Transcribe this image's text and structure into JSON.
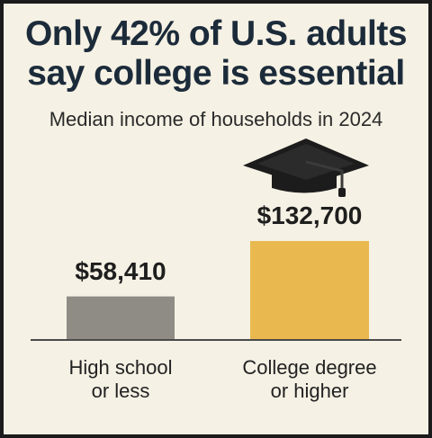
{
  "header": {
    "title_line_1": "Only 42% of U.S. adults",
    "title_line_2": "say college is essential",
    "subtitle": "Median income of households in 2024"
  },
  "colors": {
    "background": "#f5f1e4",
    "title": "#1c2b3a",
    "high_school_bar": "#8f8c86",
    "college_bar": "#e9b84f",
    "baseline": "#4a4a4a",
    "cap": "#1c1c1c"
  },
  "icons": {
    "graduation": "graduation-cap-icon"
  },
  "chart_data": {
    "type": "bar",
    "title": "Only 42% of U.S. adults say college is essential",
    "subtitle": "Median income of households in 2024",
    "categories": [
      "High school or less",
      "College degree or higher"
    ],
    "category_lines": [
      [
        "High school",
        "or less"
      ],
      [
        "College degree",
        "or higher"
      ]
    ],
    "values": [
      58410,
      132700
    ],
    "value_labels": [
      "$58,410",
      "$132,700"
    ],
    "bar_colors": [
      "#8f8c86",
      "#e9b84f"
    ],
    "ylim": [
      0,
      132700
    ],
    "grid": false,
    "legend": "none"
  }
}
